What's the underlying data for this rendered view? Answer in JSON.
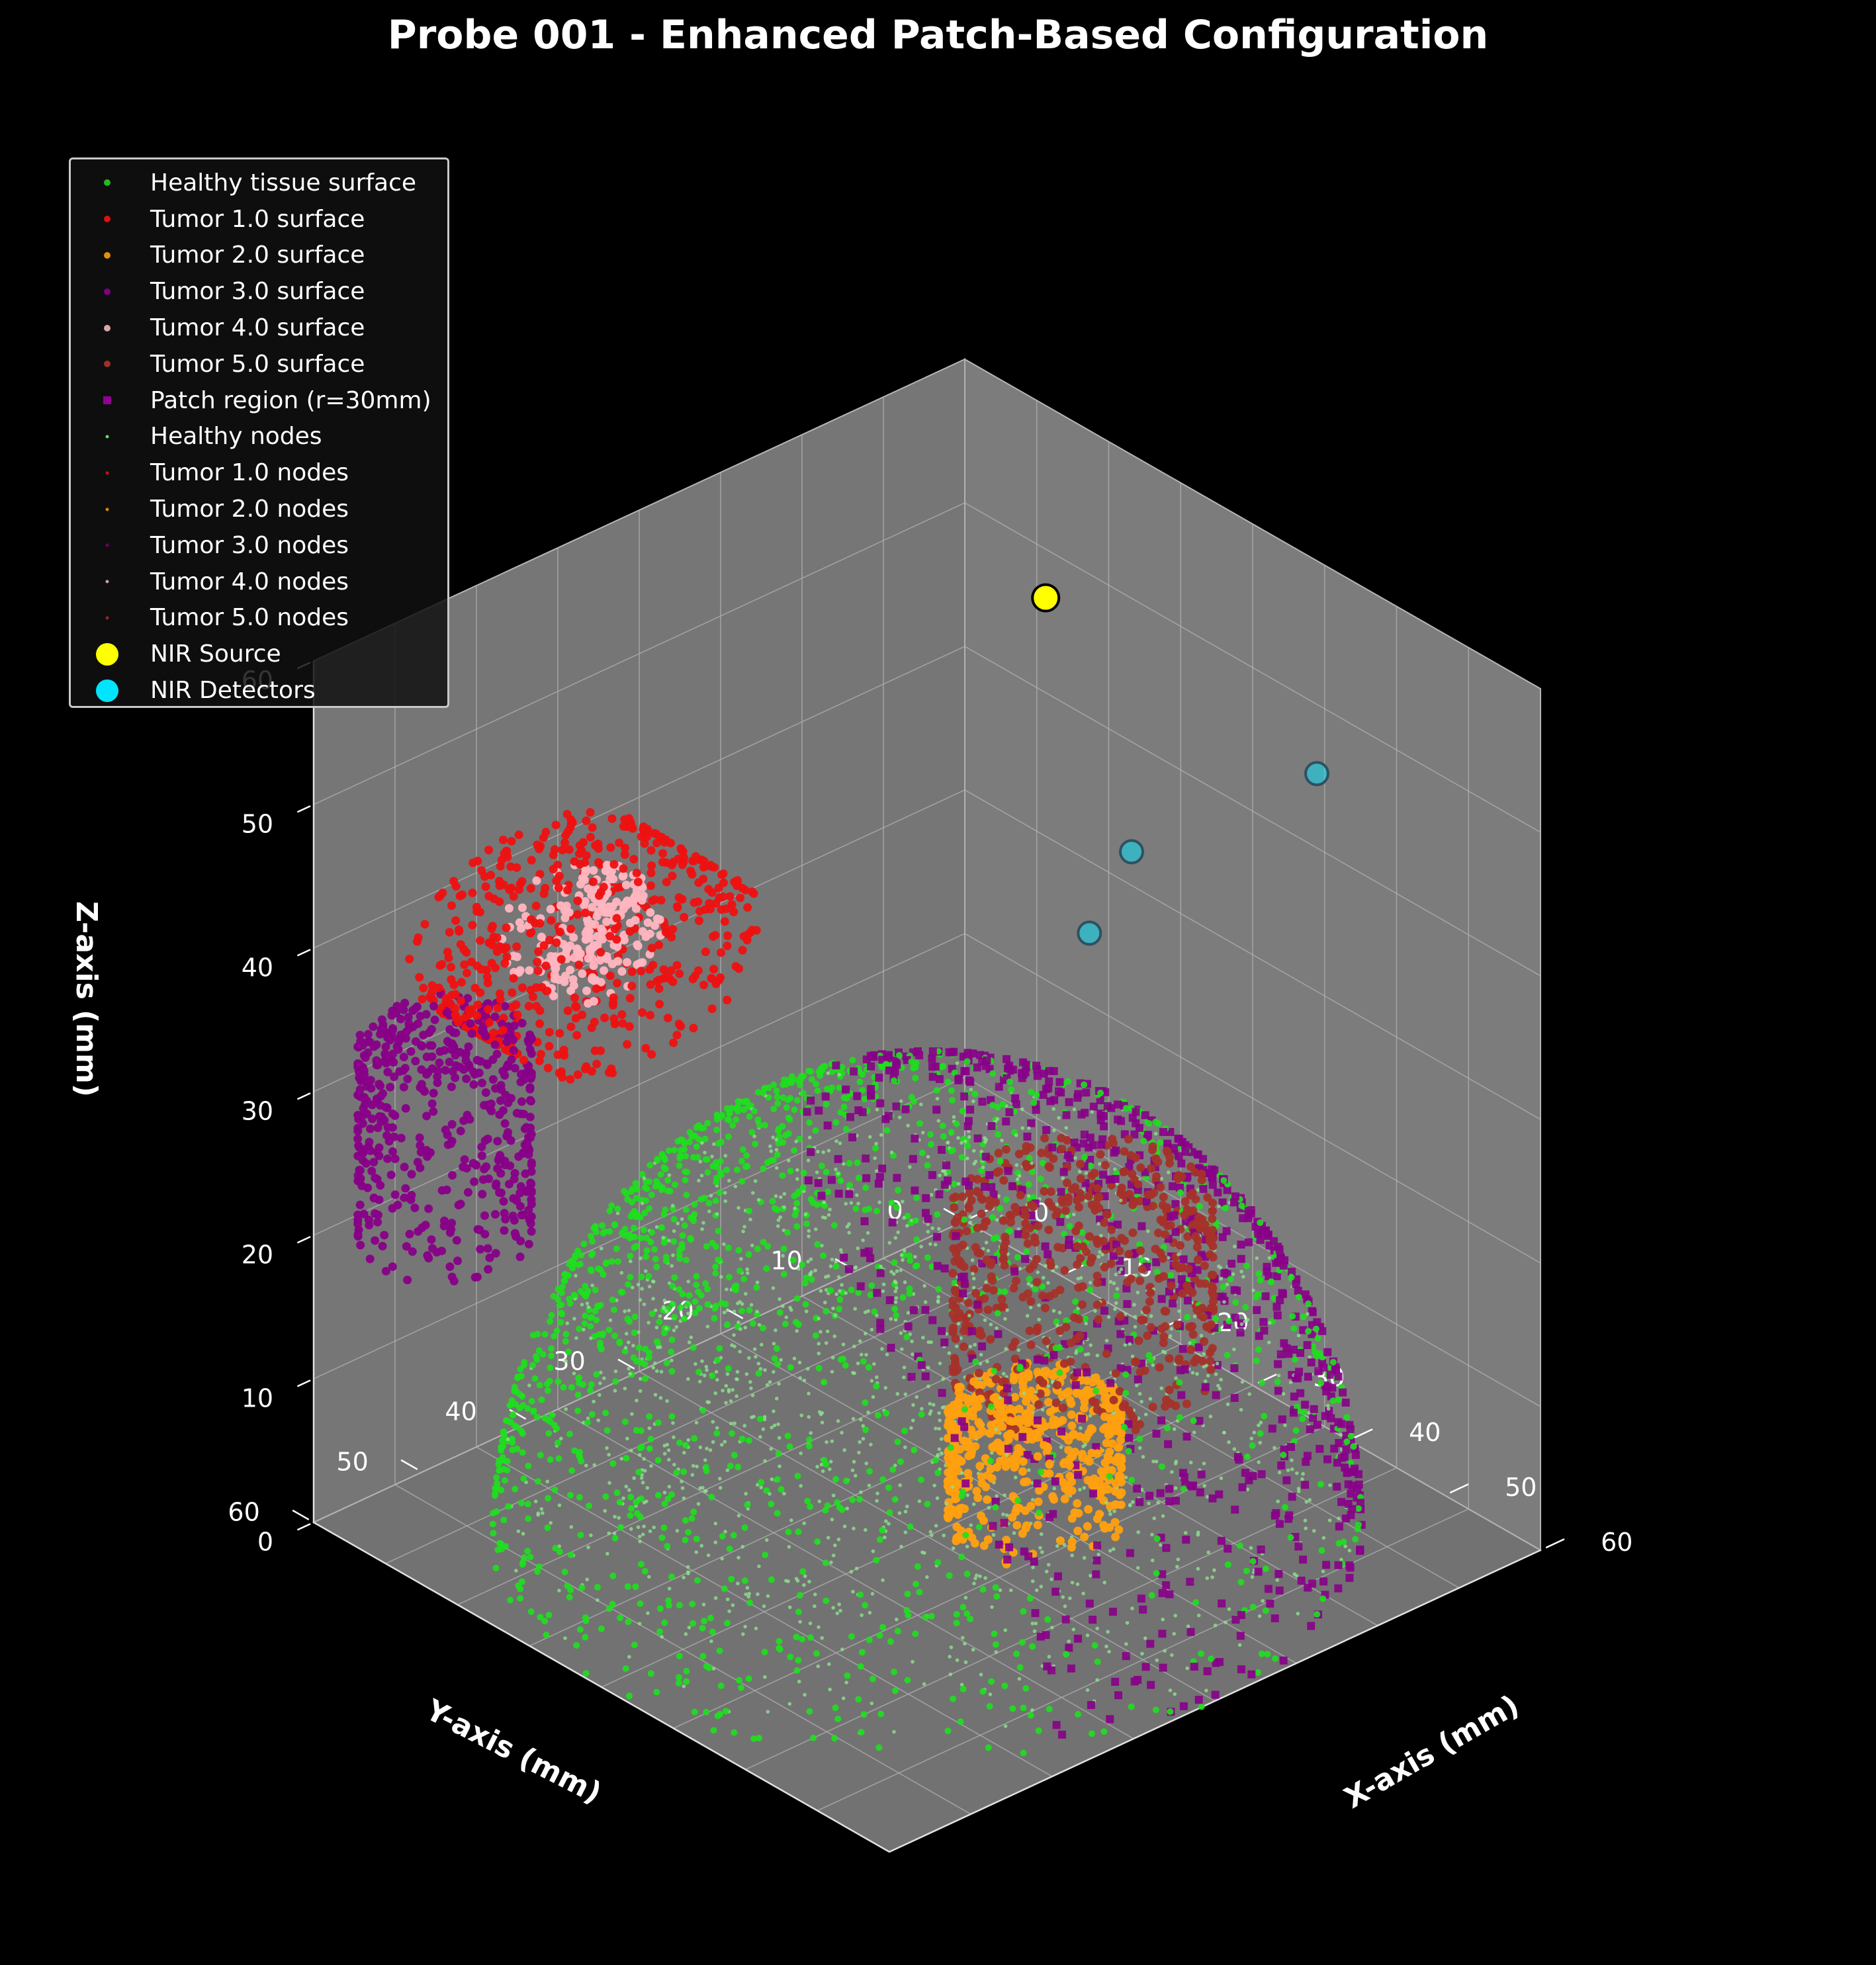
{
  "title": "Probe 001 - Enhanced Patch-Based Configuration",
  "chart_data": {
    "type": "scatter3d",
    "title": "Probe 001 - Enhanced Patch-Based Configuration",
    "xlabel": "X-axis (mm)",
    "ylabel": "Y-axis (mm)",
    "zlabel": "Z-axis (mm)",
    "xlim": [
      0,
      60
    ],
    "ylim": [
      0,
      60
    ],
    "zlim": [
      0,
      60
    ],
    "x_ticks": [
      "0",
      "10",
      "20",
      "30",
      "40",
      "50",
      "60"
    ],
    "y_ticks": [
      "0",
      "10",
      "20",
      "30",
      "40",
      "50",
      "60"
    ],
    "z_ticks": [
      "0",
      "10",
      "20",
      "30",
      "40",
      "50",
      "60"
    ],
    "grid": true,
    "legend_position": "upper-left",
    "legend": [
      {
        "label": "Healthy tissue surface",
        "color": "#22bb22",
        "marker": "dot"
      },
      {
        "label": "Tumor 1.0 surface",
        "color": "#e01010",
        "marker": "dot"
      },
      {
        "label": "Tumor 2.0 surface",
        "color": "#e0900a",
        "marker": "dot"
      },
      {
        "label": "Tumor 3.0 surface",
        "color": "#800080",
        "marker": "dot"
      },
      {
        "label": "Tumor 4.0 surface",
        "color": "#d8a8a8",
        "marker": "dot"
      },
      {
        "label": "Tumor 5.0 surface",
        "color": "#a0302a",
        "marker": "dot"
      },
      {
        "label": "Patch region (r=30mm)",
        "color": "#900090",
        "marker": "square"
      },
      {
        "label": "Healthy nodes",
        "color": "#66dd66",
        "marker": "small-dot"
      },
      {
        "label": "Tumor 1.0 nodes",
        "color": "#cc1010",
        "marker": "small-dot"
      },
      {
        "label": "Tumor 2.0 nodes",
        "color": "#cc8a10",
        "marker": "small-dot"
      },
      {
        "label": "Tumor 3.0 nodes",
        "color": "#6a006a",
        "marker": "small-dot"
      },
      {
        "label": "Tumor 4.0 nodes",
        "color": "#caa0a0",
        "marker": "small-dot"
      },
      {
        "label": "Tumor 5.0 nodes",
        "color": "#8a2a24",
        "marker": "small-dot"
      },
      {
        "label": "NIR Source",
        "color": "#ffff00",
        "marker": "big-dot"
      },
      {
        "label": "NIR Detectors",
        "color": "#00e5ff",
        "marker": "big-dot"
      }
    ],
    "healthy_hemisphere": {
      "center": [
        30,
        30,
        0
      ],
      "radius": 30
    },
    "tumors": [
      {
        "name": "Tumor 1.0",
        "color": "#ee1111",
        "center": [
          8,
          42,
          37
        ],
        "radius": 11,
        "shape": "cylinder-horizontal-x"
      },
      {
        "name": "Tumor 2.0",
        "color": "#ffa010",
        "center": [
          48,
          36,
          14
        ],
        "radius": 6,
        "half_height": 4,
        "shape": "cylinder-vertical"
      },
      {
        "name": "Tumor 3.0",
        "color": "#880088",
        "center": [
          8,
          55,
          28
        ],
        "radius": 6,
        "half_height": 7,
        "shape": "cylinder-vertical"
      },
      {
        "name": "Tumor 4.0",
        "color": "#ffb6c1",
        "center": [
          8,
          42,
          38
        ],
        "radius": 6,
        "shape": "core"
      },
      {
        "name": "Tumor 5.0",
        "color": "#a5322a",
        "center": [
          44,
          28,
          22
        ],
        "radius": 9,
        "half_height": 6,
        "shape": "cylinder-vertical"
      }
    ],
    "patch_region": {
      "center_xy": [
        45,
        15
      ],
      "radius_mm": 30
    },
    "nir_source": {
      "x": 22,
      "y": 12,
      "z": 56
    },
    "nir_detectors": [
      {
        "x": 48,
        "y": 10,
        "z": 53
      },
      {
        "x": 40,
        "y": 20,
        "z": 48
      },
      {
        "x": 39,
        "y": 23,
        "z": 43
      }
    ]
  }
}
